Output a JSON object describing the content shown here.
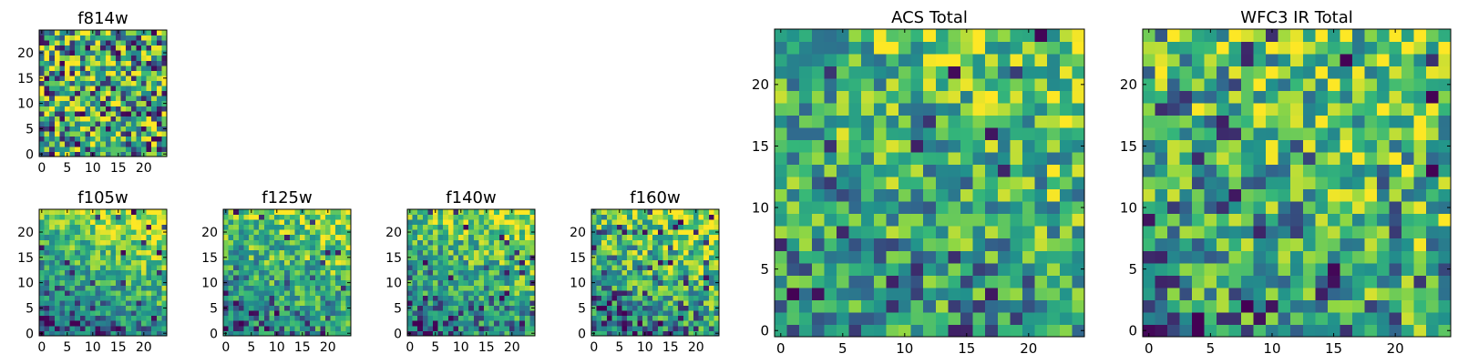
{
  "figure": {
    "colormap": [
      "#440154",
      "#31688e",
      "#21918c",
      "#35b779",
      "#90d743",
      "#fde725"
    ]
  },
  "chart_data": [
    {
      "type": "heatmap",
      "title": "f814w",
      "grid_size": 25,
      "xlim": [
        0,
        24
      ],
      "ylim": [
        0,
        24
      ],
      "xticks": [
        0,
        5,
        10,
        15,
        20
      ],
      "yticks": [
        0,
        5,
        10,
        15,
        20
      ],
      "seed": 814,
      "trend": 0.0,
      "noise": 0.55,
      "dark_prob": 0.06
    },
    {
      "type": "heatmap",
      "title": "f105w",
      "grid_size": 25,
      "xlim": [
        0,
        24
      ],
      "ylim": [
        0,
        24
      ],
      "xticks": [
        0,
        5,
        10,
        15,
        20
      ],
      "yticks": [
        0,
        5,
        10,
        15,
        20
      ],
      "seed": 105,
      "trend": 0.45,
      "noise": 0.3,
      "dark_prob": 0.03
    },
    {
      "type": "heatmap",
      "title": "f125w",
      "grid_size": 25,
      "xlim": [
        0,
        24
      ],
      "ylim": [
        0,
        24
      ],
      "xticks": [
        0,
        5,
        10,
        15,
        20
      ],
      "yticks": [
        0,
        5,
        10,
        15,
        20
      ],
      "seed": 125,
      "trend": 0.35,
      "noise": 0.35,
      "dark_prob": 0.03
    },
    {
      "type": "heatmap",
      "title": "f140w",
      "grid_size": 25,
      "xlim": [
        0,
        24
      ],
      "ylim": [
        0,
        24
      ],
      "xticks": [
        0,
        5,
        10,
        15,
        20
      ],
      "yticks": [
        0,
        5,
        10,
        15,
        20
      ],
      "seed": 140,
      "trend": 0.35,
      "noise": 0.35,
      "dark_prob": 0.04
    },
    {
      "type": "heatmap",
      "title": "f160w",
      "grid_size": 25,
      "xlim": [
        0,
        24
      ],
      "ylim": [
        0,
        24
      ],
      "xticks": [
        0,
        5,
        10,
        15,
        20
      ],
      "yticks": [
        0,
        5,
        10,
        15,
        20
      ],
      "seed": 160,
      "trend": 0.35,
      "noise": 0.4,
      "dark_prob": 0.05
    },
    {
      "type": "heatmap",
      "title": "ACS Total",
      "grid_size": 25,
      "xlim": [
        0,
        24
      ],
      "ylim": [
        0,
        24
      ],
      "xticks": [
        0,
        5,
        10,
        15,
        20
      ],
      "yticks": [
        0,
        5,
        10,
        15,
        20
      ],
      "seed": 777,
      "trend": 0.2,
      "noise": 0.4,
      "dark_prob": 0.03
    },
    {
      "type": "heatmap",
      "title": "WFC3 IR Total",
      "grid_size": 25,
      "xlim": [
        0,
        24
      ],
      "ylim": [
        0,
        24
      ],
      "xticks": [
        0,
        5,
        10,
        15,
        20
      ],
      "yticks": [
        0,
        5,
        10,
        15,
        20
      ],
      "seed": 333,
      "trend": 0.2,
      "noise": 0.45,
      "dark_prob": 0.03
    }
  ]
}
